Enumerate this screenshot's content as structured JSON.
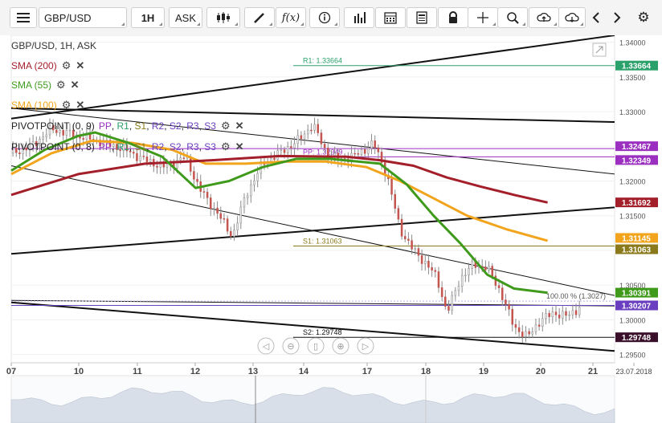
{
  "toolbar": {
    "menu_icon": "hamburger-menu-icon",
    "symbol": "GBP/USD",
    "timeframe": "1H",
    "price_side": "ASK",
    "buttons": [
      "candles-icon",
      "draw-pen-icon",
      "fx-indicator-icon",
      "info-icon",
      "bars-icon",
      "calendar-icon",
      "report-icon",
      "lock-icon",
      "crosshair-icon",
      "zoom-icon",
      "upload-cloud-icon",
      "download-cloud-icon",
      "chevron-left-icon",
      "chevron-right-icon",
      "gear-icon"
    ],
    "fx_label": "f(x)"
  },
  "legend": {
    "title": "GBP/USD, 1H, ASK",
    "sma200": "SMA (200)",
    "sma55": "SMA (55)",
    "sma100": "SMA (100)",
    "pivot1": "PIVOTPOINT (0, 9)",
    "pivot2": "PIVOTPOINT (0, 8)",
    "pivot_levels": [
      "PP",
      "R1",
      "S1",
      "R2",
      "S2",
      "R3",
      "S3"
    ]
  },
  "nav": [
    "nav-left-icon",
    "zoom-out-icon",
    "reset-icon",
    "zoom-in-icon",
    "nav-right-icon"
  ],
  "colors": {
    "sma200": "#a31f2a",
    "sma55": "#3f9a1c",
    "sma100": "#f2a51c",
    "pivot_pp": "#9b2fc0",
    "pivot_r1": "#2aa06b",
    "pivot_s1": "#8b7a1c",
    "current": "#6a3fbf",
    "s2": "#3a0f2a"
  },
  "chart_data": {
    "type": "line",
    "instrument": "GBP/USD",
    "timeframe": "1H",
    "x_tick_labels": [
      "07",
      "10",
      "11",
      "12",
      "13",
      "14",
      "17",
      "18",
      "19",
      "20",
      "21",
      "23.07.2018"
    ],
    "y_tick_labels": [
      "1.34000",
      "1.33500",
      "1.33000",
      "1.32500",
      "1.32000",
      "1.31500",
      "1.31000",
      "1.30500",
      "1.30000",
      "1.29500"
    ],
    "ylim": [
      1.2938,
      1.341
    ],
    "price_path": [
      [
        0,
        1.324
      ],
      [
        6,
        1.325
      ],
      [
        12,
        1.3275
      ],
      [
        20,
        1.3265
      ],
      [
        28,
        1.3255
      ],
      [
        34,
        1.3245
      ],
      [
        40,
        1.323
      ],
      [
        46,
        1.322
      ],
      [
        52,
        1.3235
      ],
      [
        56,
        1.319
      ],
      [
        62,
        1.315
      ],
      [
        66,
        1.312
      ],
      [
        70,
        1.318
      ],
      [
        75,
        1.3225
      ],
      [
        80,
        1.324
      ],
      [
        86,
        1.326
      ],
      [
        90,
        1.3282
      ],
      [
        94,
        1.324
      ],
      [
        98,
        1.323
      ],
      [
        104,
        1.324
      ],
      [
        108,
        1.3255
      ],
      [
        112,
        1.321
      ],
      [
        116,
        1.313
      ],
      [
        120,
        1.31
      ],
      [
        124,
        1.308
      ],
      [
        127,
        1.306
      ],
      [
        130,
        1.301
      ],
      [
        134,
        1.306
      ],
      [
        138,
        1.308
      ],
      [
        142,
        1.3075
      ],
      [
        146,
        1.304
      ],
      [
        150,
        1.299
      ],
      [
        154,
        1.2975
      ],
      [
        158,
        1.3
      ],
      [
        162,
        1.301
      ],
      [
        166,
        1.3005
      ],
      [
        170,
        1.302
      ]
    ],
    "x_range": [
      0,
      180
    ],
    "sma_200": [
      [
        0,
        1.318
      ],
      [
        20,
        1.321
      ],
      [
        40,
        1.3225
      ],
      [
        60,
        1.323
      ],
      [
        80,
        1.3236
      ],
      [
        100,
        1.3235
      ],
      [
        110,
        1.323
      ],
      [
        120,
        1.3222
      ],
      [
        130,
        1.3205
      ],
      [
        140,
        1.3192
      ],
      [
        150,
        1.318
      ],
      [
        160,
        1.3169
      ]
    ],
    "sma_55": [
      [
        0,
        1.3215
      ],
      [
        10,
        1.3245
      ],
      [
        20,
        1.3265
      ],
      [
        25,
        1.327
      ],
      [
        35,
        1.3255
      ],
      [
        45,
        1.3235
      ],
      [
        55,
        1.319
      ],
      [
        65,
        1.32
      ],
      [
        75,
        1.322
      ],
      [
        85,
        1.3232
      ],
      [
        95,
        1.3232
      ],
      [
        110,
        1.3225
      ],
      [
        118,
        1.3195
      ],
      [
        126,
        1.315
      ],
      [
        134,
        1.311
      ],
      [
        142,
        1.3065
      ],
      [
        150,
        1.3045
      ],
      [
        160,
        1.3039
      ]
    ],
    "sma_100": [
      [
        0,
        1.321
      ],
      [
        12,
        1.324
      ],
      [
        24,
        1.3258
      ],
      [
        36,
        1.3255
      ],
      [
        48,
        1.3245
      ],
      [
        58,
        1.3225
      ],
      [
        70,
        1.3225
      ],
      [
        82,
        1.3228
      ],
      [
        94,
        1.3228
      ],
      [
        106,
        1.322
      ],
      [
        116,
        1.32
      ],
      [
        126,
        1.3175
      ],
      [
        136,
        1.315
      ],
      [
        148,
        1.313
      ],
      [
        160,
        1.3114
      ]
    ],
    "price_labels": [
      {
        "text": "1.33664",
        "color": "#2aa06b"
      },
      {
        "text": "1.32467",
        "color": "#9b2fc0"
      },
      {
        "text": "1.32349",
        "color": "#9b2fc0"
      },
      {
        "text": "1.31692",
        "color": "#a31f2a"
      },
      {
        "text": "1.31145",
        "color": "#f2a51c"
      },
      {
        "text": "1.31063",
        "color": "#8b7a1c"
      },
      {
        "text": "1.30391",
        "color": "#3f9a1c"
      },
      {
        "text": "1.30207",
        "color": "#6a3fbf"
      },
      {
        "text": "1.29748",
        "color": "#3a0f2a"
      }
    ],
    "level_texts": {
      "r1": "R1: 1.33664",
      "pp": "PP: 1.32349",
      "s1": "S1: 1.31063",
      "s2": "S2: 1.29748",
      "fib": "100.00 % (1.3027)"
    },
    "ytick_values": [
      1.34,
      1.335,
      1.33,
      1.325,
      1.32,
      1.315,
      1.31,
      1.305,
      1.3,
      1.295
    ],
    "grid": true,
    "legend_position": "top-left"
  }
}
